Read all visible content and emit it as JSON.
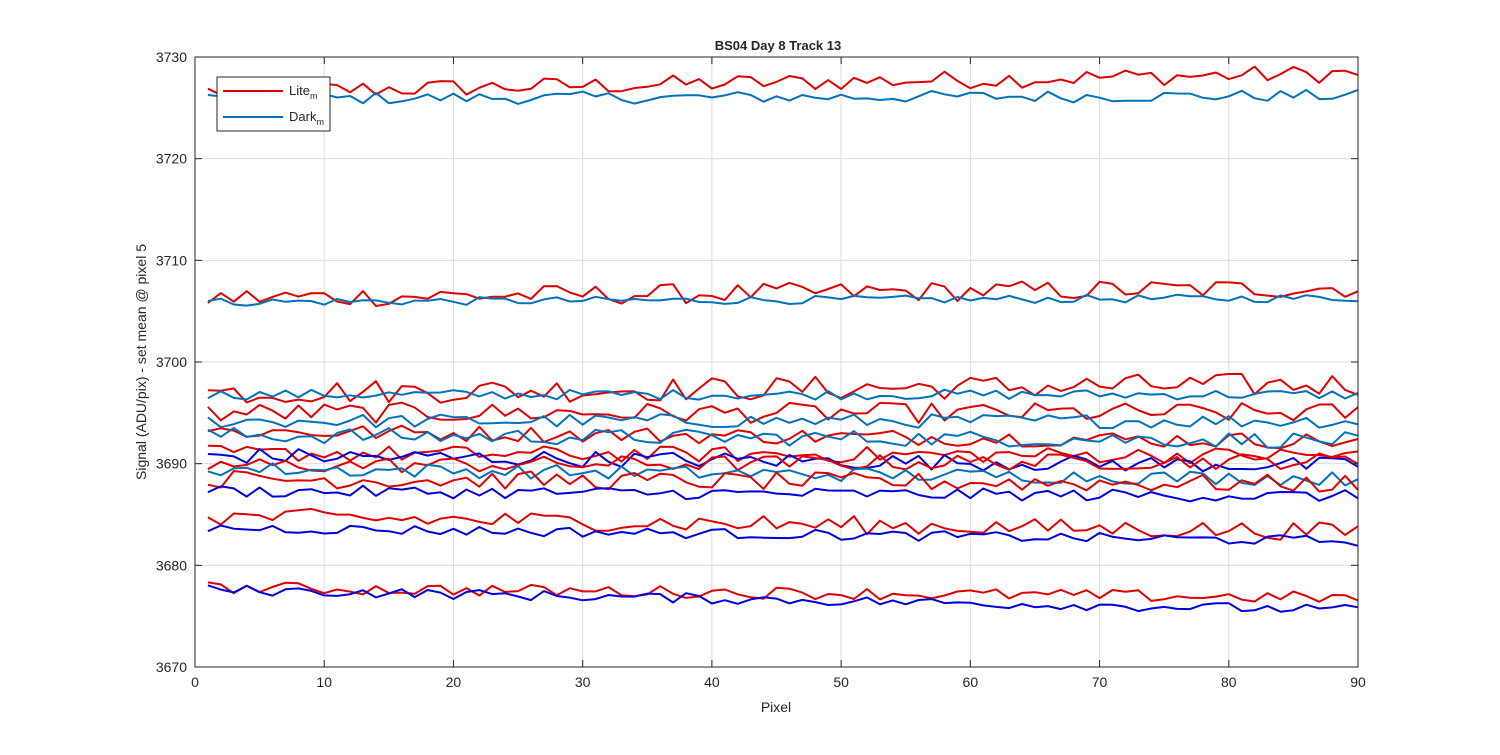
{
  "chart_data": {
    "type": "line",
    "title": "BS04 Day 8 Track 13",
    "xlabel": "Pixel",
    "ylabel": "Signal (ADU/pix) - set mean @ pixel 5",
    "xlim": [
      0,
      90
    ],
    "ylim": [
      3670,
      3730
    ],
    "xticks": [
      0,
      10,
      20,
      30,
      40,
      50,
      60,
      70,
      80,
      90
    ],
    "yticks": [
      3670,
      3680,
      3690,
      3700,
      3710,
      3720,
      3730
    ],
    "grid": true,
    "legend": {
      "placement": "top-left",
      "entries": [
        {
          "label": "Lite",
          "subscript": "m",
          "color": "#e00000"
        },
        {
          "label": "Dark",
          "subscript": "m",
          "color": "#0072bd"
        }
      ]
    },
    "x": [
      1,
      2,
      3,
      4,
      5,
      6,
      7,
      8,
      9,
      10,
      11,
      12,
      13,
      14,
      15,
      16,
      17,
      18,
      19,
      20,
      21,
      22,
      23,
      24,
      25,
      26,
      27,
      28,
      29,
      30,
      31,
      32,
      33,
      34,
      35,
      36,
      37,
      38,
      39,
      40,
      41,
      42,
      43,
      44,
      45,
      46,
      47,
      48,
      49,
      50,
      51,
      52,
      53,
      54,
      55,
      56,
      57,
      58,
      59,
      60,
      61,
      62,
      63,
      64,
      65,
      66,
      67,
      68,
      69,
      70,
      71,
      72,
      73,
      74,
      75,
      76,
      77,
      78,
      79,
      80,
      81,
      82,
      83,
      84,
      85,
      86,
      87,
      88,
      89,
      90
    ],
    "series_groups": [
      {
        "kind": "Lite",
        "color": "#e00000",
        "start": 3726.6,
        "spread": 0.9,
        "trend": 1.8
      },
      {
        "kind": "Dark",
        "color": "#0072bd",
        "start": 3725.9,
        "spread": 0.6,
        "trend": 0.3
      },
      {
        "kind": "Lite",
        "color": "#e00000",
        "start": 3706.3,
        "spread": 1.0,
        "trend": 1.0
      },
      {
        "kind": "Dark",
        "color": "#0072bd",
        "start": 3705.9,
        "spread": 0.4,
        "trend": 0.4
      },
      {
        "kind": "Lite",
        "color": "#e00000",
        "start": 3697.0,
        "spread": 1.2,
        "trend": 0.8
      },
      {
        "kind": "Dark",
        "color": "#0072bd",
        "start": 3696.8,
        "spread": 0.5,
        "trend": 0.0
      },
      {
        "kind": "Lite",
        "color": "#e00000",
        "start": 3695.0,
        "spread": 1.0,
        "trend": 0.0
      },
      {
        "kind": "Dark",
        "color": "#0072bd",
        "start": 3694.2,
        "spread": 0.7,
        "trend": 0.0
      },
      {
        "kind": "Lite",
        "color": "#e00000",
        "start": 3693.2,
        "spread": 0.8,
        "trend": -1.0
      },
      {
        "kind": "Dark",
        "color": "#0072bd",
        "start": 3692.8,
        "spread": 0.8,
        "trend": -0.5
      },
      {
        "kind": "Lite",
        "color": "#e00000",
        "start": 3691.0,
        "spread": 0.8,
        "trend": -0.2
      },
      {
        "kind": "Dark",
        "color": "#0000e0",
        "start": 3690.8,
        "spread": 0.8,
        "trend": -1.0
      },
      {
        "kind": "Lite",
        "color": "#e00000",
        "start": 3689.8,
        "spread": 0.8,
        "trend": 0.5
      },
      {
        "kind": "Dark",
        "color": "#0072bd",
        "start": 3689.5,
        "spread": 0.7,
        "trend": -1.0
      },
      {
        "kind": "Lite",
        "color": "#e00000",
        "start": 3688.5,
        "spread": 0.9,
        "trend": -0.5
      },
      {
        "kind": "Dark",
        "color": "#0000e0",
        "start": 3687.3,
        "spread": 0.6,
        "trend": -0.5
      },
      {
        "kind": "Lite",
        "color": "#e00000",
        "start": 3684.8,
        "spread": 0.9,
        "trend": -1.5
      },
      {
        "kind": "Dark",
        "color": "#0000e0",
        "start": 3683.7,
        "spread": 0.5,
        "trend": -1.3
      },
      {
        "kind": "Lite",
        "color": "#e00000",
        "start": 3677.8,
        "spread": 0.6,
        "trend": -1.0
      },
      {
        "kind": "Dark",
        "color": "#0000e0",
        "start": 3677.6,
        "spread": 0.5,
        "trend": -2.0
      }
    ]
  }
}
